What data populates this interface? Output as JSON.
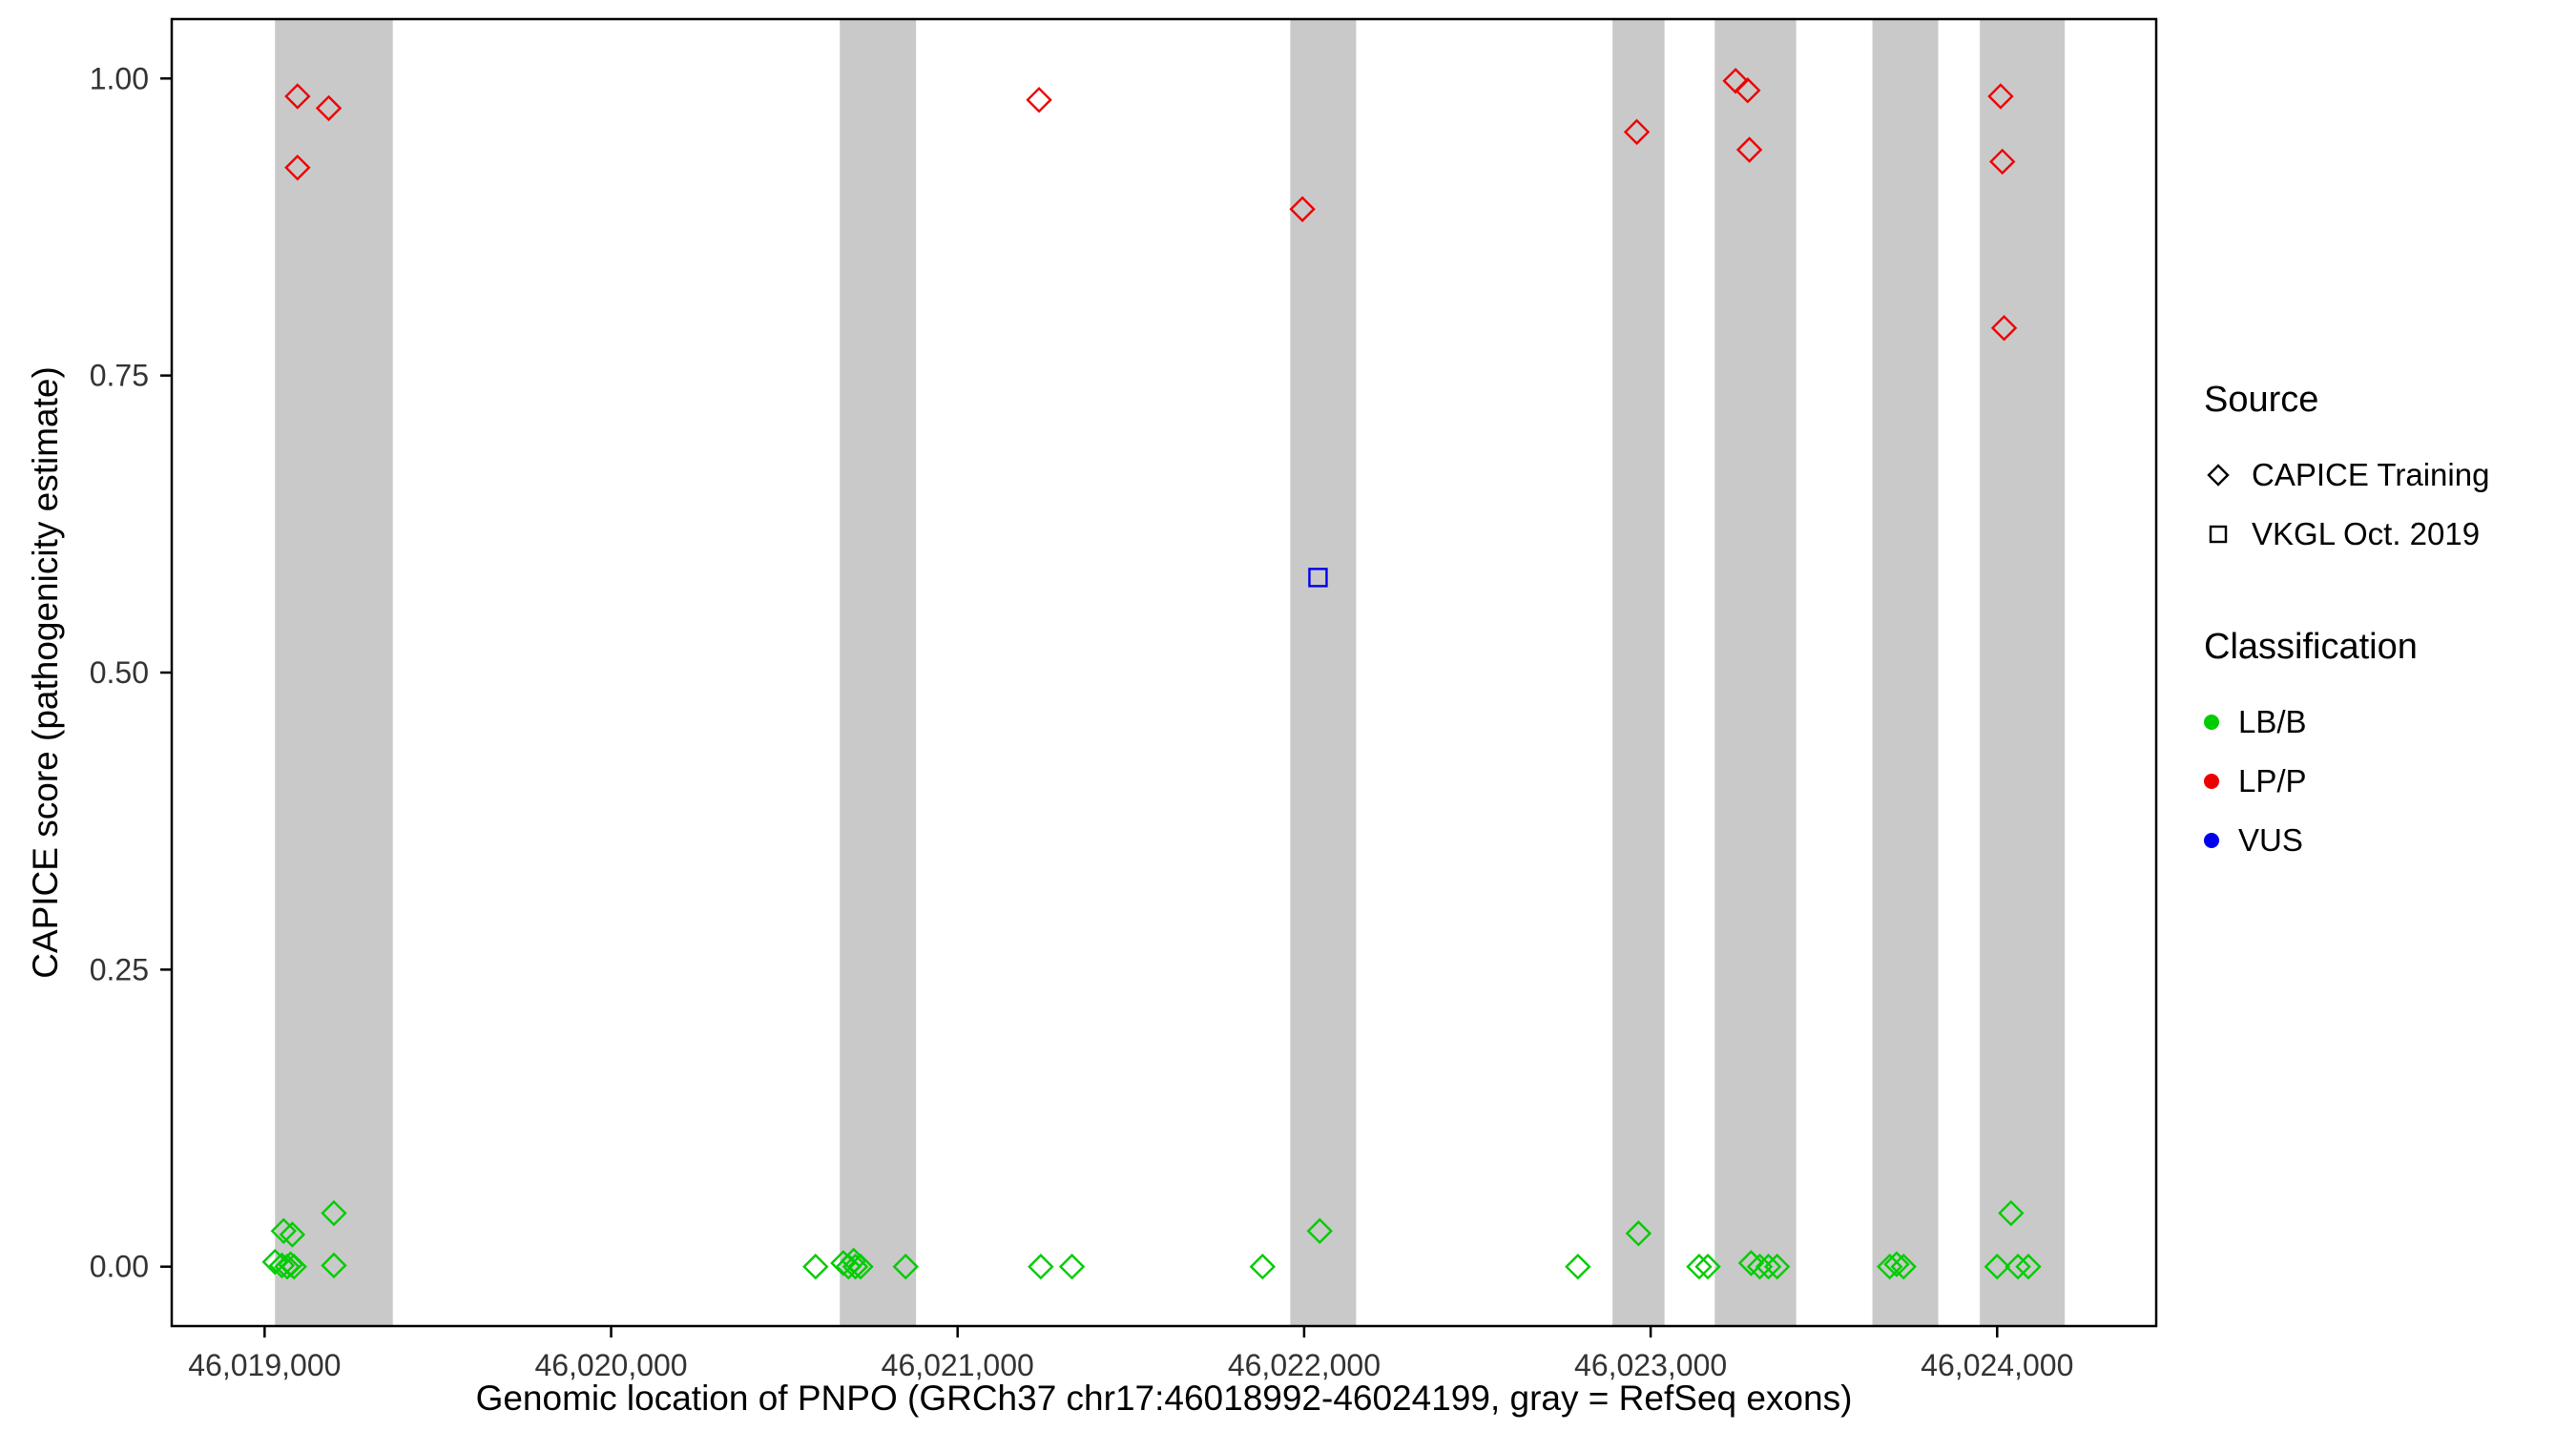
{
  "chart_data": {
    "type": "scatter",
    "title": "",
    "xlabel": "Genomic location of PNPO (GRCh37 chr17:46018992-46024199, gray = RefSeq exons)",
    "ylabel": "CAPICE score (pathogenicity estimate)",
    "x_domain": [
      46018732,
      46024459
    ],
    "y_domain": [
      -0.05,
      1.05
    ],
    "grid": false,
    "legend_position": "right",
    "band_color": "#c9c9c9",
    "x_ticks": [
      {
        "value": 46019000,
        "label": "46,019,000"
      },
      {
        "value": 46020000,
        "label": "46,020,000"
      },
      {
        "value": 46021000,
        "label": "46,021,000"
      },
      {
        "value": 46022000,
        "label": "46,022,000"
      },
      {
        "value": 46023000,
        "label": "46,023,000"
      },
      {
        "value": 46024000,
        "label": "46,024,000"
      }
    ],
    "y_ticks": [
      {
        "value": 0.0,
        "label": "0.00"
      },
      {
        "value": 0.25,
        "label": "0.25"
      },
      {
        "value": 0.5,
        "label": "0.50"
      },
      {
        "value": 0.75,
        "label": "0.75"
      },
      {
        "value": 1.0,
        "label": "1.00"
      }
    ],
    "exon_bands": [
      {
        "start": 46019030,
        "end": 46019370
      },
      {
        "start": 46020660,
        "end": 46020880
      },
      {
        "start": 46021960,
        "end": 46022150
      },
      {
        "start": 46022890,
        "end": 46023040
      },
      {
        "start": 46023185,
        "end": 46023420
      },
      {
        "start": 46023640,
        "end": 46023830
      },
      {
        "start": 46023950,
        "end": 46024195
      }
    ],
    "class_colors": {
      "LB/B": "#00cc00",
      "LP/P": "#ee0000",
      "VUS": "#0000ee"
    },
    "series": [
      {
        "name": "CAPICE Training",
        "marker": "diamond",
        "points": [
          {
            "x": 46019095,
            "y": 0.985,
            "class": "LP/P"
          },
          {
            "x": 46019185,
            "y": 0.975,
            "class": "LP/P"
          },
          {
            "x": 46019095,
            "y": 0.925,
            "class": "LP/P"
          },
          {
            "x": 46021235,
            "y": 0.982,
            "class": "LP/P"
          },
          {
            "x": 46021995,
            "y": 0.89,
            "class": "LP/P"
          },
          {
            "x": 46022960,
            "y": 0.955,
            "class": "LP/P"
          },
          {
            "x": 46023245,
            "y": 0.998,
            "class": "LP/P"
          },
          {
            "x": 46023280,
            "y": 0.99,
            "class": "LP/P"
          },
          {
            "x": 46023285,
            "y": 0.94,
            "class": "LP/P"
          },
          {
            "x": 46024010,
            "y": 0.985,
            "class": "LP/P"
          },
          {
            "x": 46024015,
            "y": 0.93,
            "class": "LP/P"
          },
          {
            "x": 46024020,
            "y": 0.79,
            "class": "LP/P"
          },
          {
            "x": 46019055,
            "y": 0.03,
            "class": "LB/B"
          },
          {
            "x": 46019080,
            "y": 0.027,
            "class": "LB/B"
          },
          {
            "x": 46019200,
            "y": 0.045,
            "class": "LB/B"
          },
          {
            "x": 46019030,
            "y": 0.004,
            "class": "LB/B"
          },
          {
            "x": 46019050,
            "y": 0.001,
            "class": "LB/B"
          },
          {
            "x": 46019065,
            "y": 0.0,
            "class": "LB/B"
          },
          {
            "x": 46019075,
            "y": 0.002,
            "class": "LB/B"
          },
          {
            "x": 46019085,
            "y": 0.0,
            "class": "LB/B"
          },
          {
            "x": 46019200,
            "y": 0.001,
            "class": "LB/B"
          },
          {
            "x": 46020590,
            "y": 0.0,
            "class": "LB/B"
          },
          {
            "x": 46020670,
            "y": 0.003,
            "class": "LB/B"
          },
          {
            "x": 46020685,
            "y": 0.0,
            "class": "LB/B"
          },
          {
            "x": 46020700,
            "y": 0.005,
            "class": "LB/B"
          },
          {
            "x": 46020705,
            "y": 0.0,
            "class": "LB/B"
          },
          {
            "x": 46020720,
            "y": 0.0,
            "class": "LB/B"
          },
          {
            "x": 46020850,
            "y": 0.0,
            "class": "LB/B"
          },
          {
            "x": 46021240,
            "y": 0.0,
            "class": "LB/B"
          },
          {
            "x": 46021330,
            "y": 0.0,
            "class": "LB/B"
          },
          {
            "x": 46021880,
            "y": 0.0,
            "class": "LB/B"
          },
          {
            "x": 46022045,
            "y": 0.03,
            "class": "LB/B"
          },
          {
            "x": 46022790,
            "y": 0.0,
            "class": "LB/B"
          },
          {
            "x": 46022965,
            "y": 0.028,
            "class": "LB/B"
          },
          {
            "x": 46023140,
            "y": 0.0,
            "class": "LB/B"
          },
          {
            "x": 46023165,
            "y": 0.0,
            "class": "LB/B"
          },
          {
            "x": 46023290,
            "y": 0.003,
            "class": "LB/B"
          },
          {
            "x": 46023315,
            "y": 0.0,
            "class": "LB/B"
          },
          {
            "x": 46023340,
            "y": 0.0,
            "class": "LB/B"
          },
          {
            "x": 46023365,
            "y": 0.0,
            "class": "LB/B"
          },
          {
            "x": 46023690,
            "y": 0.0,
            "class": "LB/B"
          },
          {
            "x": 46023710,
            "y": 0.002,
            "class": "LB/B"
          },
          {
            "x": 46023730,
            "y": 0.0,
            "class": "LB/B"
          },
          {
            "x": 46024040,
            "y": 0.045,
            "class": "LB/B"
          },
          {
            "x": 46024000,
            "y": 0.0,
            "class": "LB/B"
          },
          {
            "x": 46024060,
            "y": 0.0,
            "class": "LB/B"
          },
          {
            "x": 46024090,
            "y": 0.0,
            "class": "LB/B"
          }
        ]
      },
      {
        "name": "VKGL Oct. 2019",
        "marker": "square",
        "points": [
          {
            "x": 46022040,
            "y": 0.58,
            "class": "VUS"
          }
        ]
      }
    ]
  },
  "axis": {
    "x_title": "Genomic location of PNPO (GRCh37 chr17:46018992-46024199, gray = RefSeq exons)",
    "y_title": "CAPICE score (pathogenicity estimate)"
  },
  "legend": {
    "source_title": "Source",
    "source_items": [
      {
        "label": "CAPICE Training",
        "marker": "diamond"
      },
      {
        "label": "VKGL Oct. 2019",
        "marker": "square"
      }
    ],
    "classification_title": "Classification",
    "classification_items": [
      {
        "label": "LB/B",
        "color": "#00cc00"
      },
      {
        "label": "LP/P",
        "color": "#ee0000"
      },
      {
        "label": "VUS",
        "color": "#0000ee"
      }
    ]
  }
}
